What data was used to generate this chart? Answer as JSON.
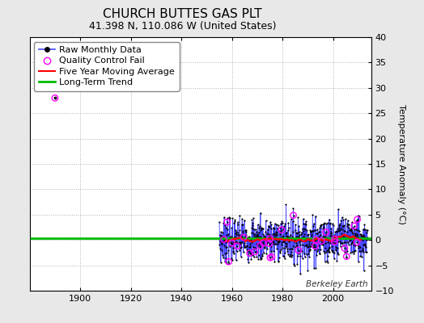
{
  "title": "CHURCH BUTTES GAS PLT",
  "subtitle": "41.398 N, 110.086 W (United States)",
  "ylabel": "Temperature Anomaly (°C)",
  "watermark": "Berkeley Earth",
  "xlim": [
    1880,
    2015
  ],
  "ylim": [
    -10,
    40
  ],
  "yticks": [
    -10,
    -5,
    0,
    5,
    10,
    15,
    20,
    25,
    30,
    35,
    40
  ],
  "xticks": [
    1900,
    1920,
    1940,
    1960,
    1980,
    2000
  ],
  "data_start_year": 1955.0,
  "data_end_year": 2013.5,
  "qc_fail_year": 1890,
  "qc_fail_value": 28,
  "trend_value": 0.3,
  "bg_color": "#e8e8e8",
  "plot_bg_color": "#ffffff",
  "grid_color": "#b0b0b0",
  "raw_line_color": "#4444ff",
  "raw_marker_color": "#000000",
  "qc_color": "#ff00ff",
  "moving_avg_color": "#ff0000",
  "trend_color": "#00bb00",
  "title_fontsize": 11,
  "subtitle_fontsize": 9,
  "ylabel_fontsize": 8,
  "tick_fontsize": 8,
  "legend_fontsize": 8
}
